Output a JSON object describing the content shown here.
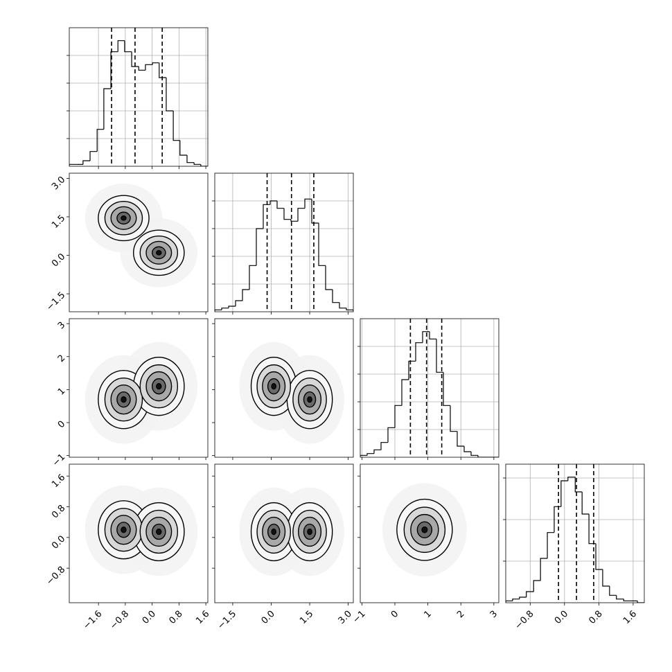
{
  "chart_data": [
    {
      "type": "histogram",
      "bins": [
        -2.47,
        -2.26,
        -2.06,
        -1.85,
        -1.64,
        -1.44,
        -1.23,
        -1.02,
        -0.82,
        -0.61,
        -0.4,
        -0.2,
        0.01,
        0.21,
        0.42,
        0.63,
        0.83,
        1.04,
        1.25,
        1.45,
        1.66
      ],
      "values": [
        1,
        1,
        3,
        8,
        20,
        42,
        62,
        68,
        62,
        54,
        52,
        55,
        56,
        48,
        30,
        14,
        6,
        2,
        1,
        0
      ],
      "quantiles": [
        -1.21,
        -0.51,
        0.3
      ],
      "xlim": [
        -2.47,
        1.66
      ],
      "xticks": [
        {
          "value": -1.6,
          "label": "−1.6"
        },
        {
          "value": -0.8,
          "label": "−0.8"
        },
        {
          "value": 0,
          "label": "0.0"
        },
        0.8,
        1.6
      ],
      "ylim": [
        0,
        75
      ],
      "yticks": [
        15,
        30,
        45,
        60
      ],
      "grid": true
    },
    {
      "type": "contour",
      "x": [
        -0.85,
        0.2
      ],
      "y": [
        1.45,
        0.1
      ],
      "sigma_x": 0.36,
      "sigma_y": 0.42,
      "xlim": [
        -2.47,
        1.66
      ],
      "xticks": [
        {
          "value": -1.6,
          "label": "−1.6"
        },
        {
          "value": -0.8,
          "label": "−0.8"
        },
        {
          "value": 0,
          "label": "0.0"
        },
        0.8,
        1.6
      ],
      "ylim": [
        -2.2,
        3.2
      ],
      "yticks": [
        {
          "value": -1.5,
          "label": "−1.5"
        },
        {
          "value": 0,
          "label": "0.0"
        },
        1.5,
        {
          "value": 3,
          "label": "3.0"
        }
      ]
    },
    {
      "type": "histogram",
      "bins": [
        -2.2,
        -1.93,
        -1.66,
        -1.39,
        -1.12,
        -0.85,
        -0.58,
        -0.31,
        -0.04,
        0.23,
        0.5,
        0.77,
        1.04,
        1.31,
        1.58,
        1.85,
        2.12,
        2.39,
        2.66,
        2.93,
        3.2
      ],
      "values": [
        1,
        2,
        3,
        6,
        12,
        25,
        45,
        58,
        60,
        56,
        50,
        49,
        56,
        61,
        48,
        25,
        12,
        5,
        2,
        1
      ],
      "quantiles": [
        -0.16,
        0.79,
        1.66
      ],
      "xlim": [
        -2.2,
        3.2
      ],
      "xticks": [
        {
          "value": -1.5,
          "label": "−1.5"
        },
        {
          "value": 0,
          "label": "0.0"
        },
        1.5,
        {
          "value": 3,
          "label": "3.0"
        }
      ],
      "ylim": [
        0,
        75
      ],
      "yticks": [
        15,
        30,
        45,
        60
      ],
      "grid": true
    },
    {
      "type": "contour",
      "x": [
        -0.85,
        0.2
      ],
      "y": [
        0.7,
        1.1
      ],
      "sigma_x": 0.36,
      "sigma_y": 0.42,
      "xlim": [
        -2.47,
        1.66
      ],
      "xticks": [
        {
          "value": -1.6,
          "label": "−1.6"
        },
        {
          "value": -0.8,
          "label": "−0.8"
        },
        {
          "value": 0,
          "label": "0.0"
        },
        0.8,
        1.6
      ],
      "ylim": [
        -1.05,
        3.15
      ],
      "yticks": [
        {
          "value": -1,
          "label": "−1"
        },
        0,
        1,
        2,
        3
      ]
    },
    {
      "type": "contour",
      "x": [
        0.1,
        1.5
      ],
      "y": [
        1.1,
        0.7
      ],
      "sigma_x": 0.42,
      "sigma_y": 0.42,
      "xlim": [
        -2.2,
        3.2
      ],
      "xticks": [
        {
          "value": -1.5,
          "label": "−1.5"
        },
        {
          "value": 0,
          "label": "0.0"
        },
        1.5,
        {
          "value": 3,
          "label": "3.0"
        }
      ],
      "ylim": [
        -1.05,
        3.15
      ],
      "yticks": [
        {
          "value": -1,
          "label": "−1"
        },
        0,
        1,
        2,
        3
      ]
    },
    {
      "type": "histogram",
      "bins": [
        -1.05,
        -0.84,
        -0.63,
        -0.42,
        -0.21,
        0,
        0.21,
        0.42,
        0.63,
        0.84,
        1.05,
        1.26,
        1.47,
        1.68,
        1.89,
        2.1,
        2.31,
        2.52,
        2.73,
        2.94,
        3.15
      ],
      "values": [
        1,
        2,
        4,
        8,
        16,
        28,
        42,
        52,
        62,
        68,
        64,
        46,
        28,
        14,
        6,
        3,
        1,
        0,
        0,
        0
      ],
      "quantiles": [
        0.47,
        0.96,
        1.42
      ],
      "xlim": [
        -1.05,
        3.15
      ],
      "xticks": [
        {
          "value": -1,
          "label": "−1"
        },
        0,
        1,
        2,
        3
      ],
      "ylim": [
        0,
        75
      ],
      "yticks": [
        15,
        30,
        45,
        60
      ],
      "grid": true
    },
    {
      "type": "contour",
      "x": [
        -0.85,
        0.2
      ],
      "y": [
        0.2,
        0.15
      ],
      "sigma_x": 0.36,
      "sigma_y": 0.36,
      "xlim": [
        -2.47,
        1.66
      ],
      "xticks": [
        {
          "value": -1.6,
          "label": "−1.6"
        },
        {
          "value": -0.8,
          "label": "−0.8"
        },
        {
          "value": 0,
          "label": "0.0"
        },
        0.8,
        1.6
      ],
      "ylim": [
        -1.7,
        1.91
      ],
      "yticks": [
        {
          "value": -0.8,
          "label": "−0.8"
        },
        {
          "value": 0,
          "label": "0.0"
        },
        0.8,
        1.6
      ]
    },
    {
      "type": "contour",
      "x": [
        0.1,
        1.5
      ],
      "y": [
        0.15,
        0.15
      ],
      "sigma_x": 0.42,
      "sigma_y": 0.36,
      "xlim": [
        -2.2,
        3.2
      ],
      "xticks": [
        {
          "value": -1.5,
          "label": "−1.5"
        },
        {
          "value": 0,
          "label": "0.0"
        },
        1.5,
        {
          "value": 3,
          "label": "3.0"
        }
      ],
      "ylim": [
        -1.7,
        1.91
      ],
      "yticks": [
        {
          "value": -0.8,
          "label": "−0.8"
        },
        {
          "value": 0,
          "label": "0.0"
        },
        0.8,
        1.6
      ]
    },
    {
      "type": "contour",
      "x": [
        0.9
      ],
      "y": [
        0.2
      ],
      "sigma_x": 0.4,
      "sigma_y": 0.38,
      "xlim": [
        -1.05,
        3.15
      ],
      "xticks": [
        {
          "value": -1,
          "label": "−1"
        },
        0,
        1,
        2,
        3
      ],
      "ylim": [
        -1.7,
        1.91
      ],
      "yticks": [
        {
          "value": -0.8,
          "label": "−0.8"
        },
        {
          "value": 0,
          "label": "0.0"
        },
        0.8,
        1.6
      ]
    },
    {
      "type": "histogram",
      "bins": [
        -1.37,
        -1.21,
        -1.05,
        -0.89,
        -0.72,
        -0.56,
        -0.4,
        -0.24,
        -0.08,
        0.08,
        0.25,
        0.41,
        0.57,
        0.73,
        0.89,
        1.05,
        1.21,
        1.38,
        1.54,
        1.7,
        1.86
      ],
      "values": [
        1,
        2,
        3,
        6,
        12,
        24,
        38,
        52,
        66,
        68,
        60,
        48,
        32,
        18,
        9,
        4,
        2,
        1,
        1,
        0
      ],
      "quantiles": [
        -0.14,
        0.28,
        0.68
      ],
      "xlim": [
        -1.37,
        1.86
      ],
      "xticks": [
        {
          "value": -0.8,
          "label": "−0.8"
        },
        {
          "value": 0,
          "label": "0.0"
        },
        0.8,
        1.6
      ],
      "ylim": [
        0,
        75
      ],
      "yticks": [
        22.5,
        45,
        67.5
      ],
      "grid": true
    }
  ]
}
